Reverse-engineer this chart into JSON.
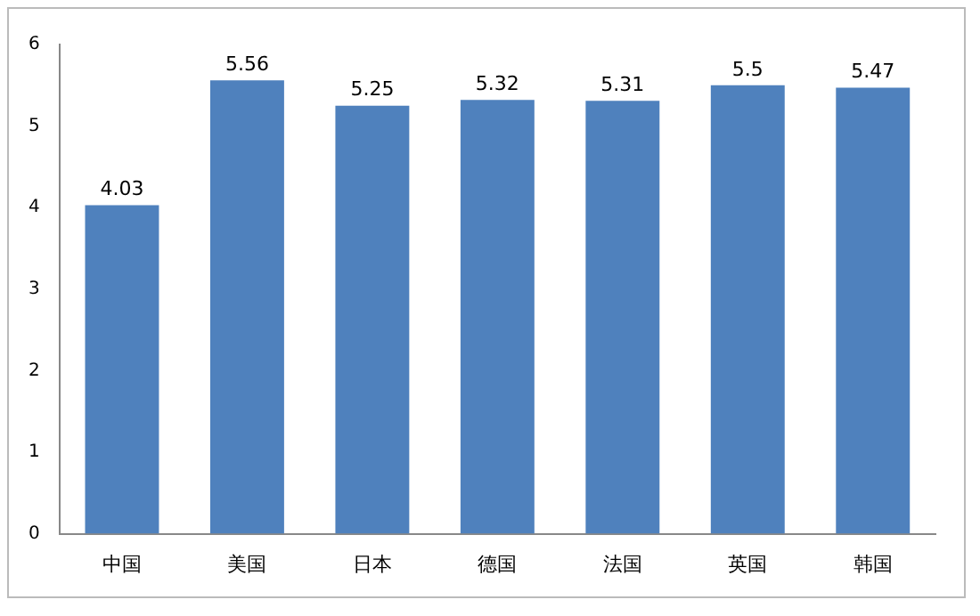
{
  "chart_data": {
    "type": "bar",
    "categories": [
      "中国",
      "美国",
      "日本",
      "德国",
      "法国",
      "英国",
      "韩国"
    ],
    "values": [
      4.03,
      5.56,
      5.25,
      5.32,
      5.31,
      5.5,
      5.47
    ],
    "color": "#4f81bd",
    "ylim": [
      0,
      6
    ],
    "yticks": [
      0,
      1,
      2,
      3,
      4,
      5,
      6
    ],
    "grid": false,
    "data_labels": true
  }
}
